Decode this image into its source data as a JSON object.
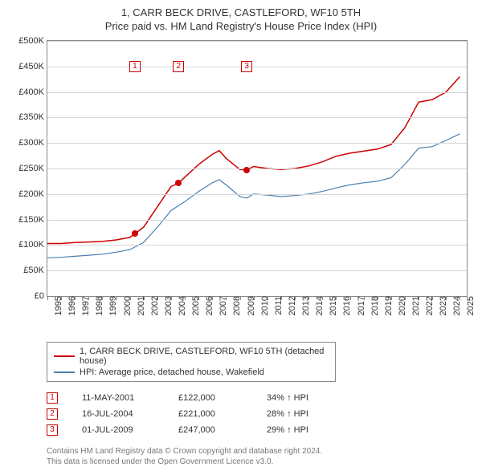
{
  "title": "1, CARR BECK DRIVE, CASTLEFORD, WF10 5TH",
  "subtitle": "Price paid vs. HM Land Registry's House Price Index (HPI)",
  "chart": {
    "type": "line",
    "x_min": 1995,
    "x_max": 2025.5,
    "y_min": 0,
    "y_max": 500000,
    "y_ticks": [
      0,
      50000,
      100000,
      150000,
      200000,
      250000,
      300000,
      350000,
      400000,
      450000,
      500000
    ],
    "y_tick_labels": [
      "£0",
      "£50K",
      "£100K",
      "£150K",
      "£200K",
      "£250K",
      "£300K",
      "£350K",
      "£400K",
      "£450K",
      "£500K"
    ],
    "x_ticks": [
      1995,
      1996,
      1997,
      1998,
      1999,
      2000,
      2001,
      2002,
      2003,
      2004,
      2005,
      2006,
      2007,
      2008,
      2009,
      2010,
      2011,
      2012,
      2013,
      2014,
      2015,
      2016,
      2017,
      2018,
      2019,
      2020,
      2021,
      2022,
      2023,
      2024,
      2025
    ],
    "grid_color": "#d6d6d6",
    "series": [
      {
        "name": "subject",
        "label": "1, CARR BECK DRIVE, CASTLEFORD, WF10 5TH (detached house)",
        "color": "#cc0000",
        "width": 1.5,
        "x": [
          1995,
          1996,
          1997,
          1998,
          1999,
          2000,
          2001,
          2001.36,
          2002,
          2003,
          2004,
          2004.54,
          2005,
          2006,
          2007,
          2007.5,
          2008,
          2009,
          2009.5,
          2010,
          2011,
          2012,
          2013,
          2014,
          2015,
          2016,
          2017,
          2018,
          2019,
          2020,
          2021,
          2022,
          2023,
          2024,
          2025
        ],
        "y": [
          103000,
          103000,
          105000,
          106000,
          107000,
          110000,
          115000,
          122000,
          135000,
          175000,
          215000,
          221000,
          233000,
          258000,
          278000,
          285000,
          270000,
          248000,
          247000,
          254000,
          250000,
          248000,
          250000,
          255000,
          263000,
          274000,
          280000,
          284000,
          288000,
          297000,
          330000,
          380000,
          385000,
          400000,
          430000
        ]
      },
      {
        "name": "hpi",
        "label": "HPI: Average price, detached house, Wakefield",
        "color": "#4a7fb0",
        "width": 1.2,
        "x": [
          1995,
          1996,
          1997,
          1998,
          1999,
          2000,
          2001,
          2002,
          2003,
          2004,
          2005,
          2006,
          2007,
          2007.5,
          2008,
          2009,
          2009.5,
          2010,
          2011,
          2012,
          2013,
          2014,
          2015,
          2016,
          2017,
          2018,
          2019,
          2020,
          2021,
          2022,
          2023,
          2024,
          2025
        ],
        "y": [
          75000,
          76000,
          78000,
          80000,
          82000,
          86000,
          91000,
          105000,
          135000,
          168000,
          185000,
          205000,
          222000,
          228000,
          218000,
          195000,
          192000,
          200000,
          198000,
          195000,
          197000,
          200000,
          205000,
          212000,
          218000,
          222000,
          225000,
          232000,
          258000,
          290000,
          293000,
          305000,
          318000
        ]
      }
    ],
    "sale_points": [
      {
        "x": 2001.36,
        "y": 122000,
        "color": "#cc0000"
      },
      {
        "x": 2004.54,
        "y": 221000,
        "color": "#cc0000"
      },
      {
        "x": 2009.5,
        "y": 247000,
        "color": "#cc0000"
      }
    ],
    "markers": [
      {
        "num": "1",
        "x": 2001.36,
        "y": 450000
      },
      {
        "num": "2",
        "x": 2004.54,
        "y": 450000
      },
      {
        "num": "3",
        "x": 2009.5,
        "y": 450000
      }
    ]
  },
  "legend": {
    "items": [
      {
        "color": "#cc0000",
        "label": "1, CARR BECK DRIVE, CASTLEFORD, WF10 5TH (detached house)"
      },
      {
        "color": "#4a7fb0",
        "label": "HPI: Average price, detached house, Wakefield"
      }
    ]
  },
  "sales": [
    {
      "num": "1",
      "date": "11-MAY-2001",
      "price": "£122,000",
      "delta": "34% ↑ HPI"
    },
    {
      "num": "2",
      "date": "16-JUL-2004",
      "price": "£221,000",
      "delta": "28% ↑ HPI"
    },
    {
      "num": "3",
      "date": "01-JUL-2009",
      "price": "£247,000",
      "delta": "29% ↑ HPI"
    }
  ],
  "footer": {
    "line1": "Contains HM Land Registry data © Crown copyright and database right 2024.",
    "line2": "This data is licensed under the Open Government Licence v3.0."
  }
}
